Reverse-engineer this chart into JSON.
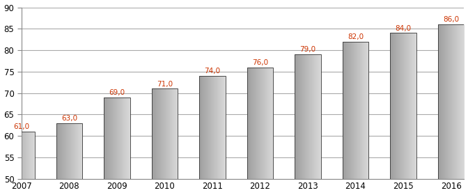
{
  "categories": [
    "2007",
    "2008",
    "2009",
    "2010",
    "2011",
    "2012",
    "2013",
    "2014",
    "2015",
    "2016"
  ],
  "values": [
    61.0,
    63.0,
    69.0,
    71.0,
    74.0,
    76.0,
    79.0,
    82.0,
    84.0,
    86.0
  ],
  "bar_color": "#b0b0b0",
  "bar_edge_color": "#333333",
  "bar_edge_width": 0.6,
  "ylim": [
    50,
    90
  ],
  "yticks": [
    50,
    55,
    60,
    65,
    70,
    75,
    80,
    85,
    90
  ],
  "label_color": "#cc3300",
  "label_fontsize": 7.5,
  "tick_fontsize": 8.5,
  "grid_color": "#aaaaaa",
  "grid_linewidth": 0.8,
  "background_color": "#ffffff",
  "bar_width": 0.55
}
